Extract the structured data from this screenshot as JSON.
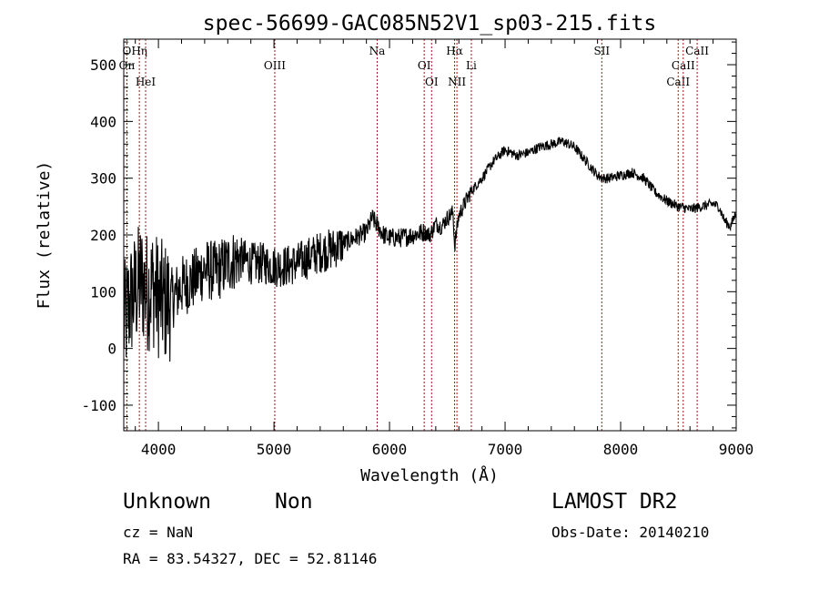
{
  "chart_data": {
    "type": "line",
    "title": "spec-56699-GAC085N52V1_sp03-215.fits",
    "xlabel": "Wavelength (Å)",
    "ylabel": "Flux (relative)",
    "xlim": [
      3700,
      9000
    ],
    "ylim": [
      -145,
      545
    ],
    "xticks": [
      4000,
      5000,
      6000,
      7000,
      8000,
      9000
    ],
    "yticks": [
      -100,
      0,
      100,
      200,
      300,
      400,
      500
    ],
    "grid": false,
    "series": [
      {
        "x": [
          3700,
          3750,
          3800,
          3850,
          3900,
          3950,
          4000,
          4050,
          4100,
          4150,
          4200,
          4300,
          4400,
          4500,
          4600,
          4700,
          4800,
          4900,
          5000,
          5100,
          5200,
          5300,
          5400,
          5500,
          5600,
          5700,
          5800,
          5850,
          5900,
          5950,
          6000,
          6100,
          6200,
          6300,
          6350,
          6400,
          6450,
          6500,
          6550,
          6563,
          6600,
          6650,
          6700,
          6800,
          6900,
          7000,
          7100,
          7200,
          7300,
          7400,
          7500,
          7600,
          7700,
          7800,
          7850,
          7900,
          8000,
          8100,
          8200,
          8300,
          8400,
          8500,
          8550,
          8600,
          8700,
          8800,
          8850,
          8900,
          8950,
          9000
        ],
        "y": [
          40,
          80,
          100,
          120,
          100,
          110,
          90,
          80,
          85,
          95,
          110,
          120,
          140,
          135,
          150,
          160,
          150,
          150,
          145,
          145,
          150,
          160,
          170,
          175,
          185,
          195,
          205,
          230,
          215,
          200,
          195,
          195,
          200,
          205,
          200,
          220,
          215,
          230,
          240,
          180,
          235,
          255,
          275,
          300,
          330,
          350,
          340,
          345,
          355,
          360,
          365,
          355,
          330,
          305,
          300,
          300,
          305,
          310,
          300,
          275,
          260,
          250,
          248,
          245,
          250,
          255,
          250,
          225,
          215,
          240
        ]
      }
    ],
    "marker_lines": [
      {
        "label": "O",
        "x": 3727
      },
      {
        "label": "Hη",
        "x": 3835
      },
      {
        "label": "Oɪɪ",
        "x": 3727
      },
      {
        "label": "HeI",
        "x": 3889
      },
      {
        "label": "OIII",
        "x": 5007
      },
      {
        "label": "Na",
        "x": 5893
      },
      {
        "label": "OI",
        "x": 6300
      },
      {
        "label": "OI",
        "x": 6364
      },
      {
        "label": "Hα",
        "x": 6563
      },
      {
        "label": "NII",
        "x": 6583
      },
      {
        "label": "Li",
        "x": 6708
      },
      {
        "label": "SII",
        "x": 7837
      },
      {
        "label": "CaII",
        "x": 8498
      },
      {
        "label": "CaII",
        "x": 8542
      },
      {
        "label": "CaII",
        "x": 8662
      }
    ]
  },
  "info": {
    "object_class": "Unknown",
    "object_subclass": "Non",
    "survey": "LAMOST DR2",
    "cz": "cz = NaN",
    "obs_date": "Obs-Date: 20140210",
    "radec": "RA =  83.54327, DEC =  52.81146"
  }
}
